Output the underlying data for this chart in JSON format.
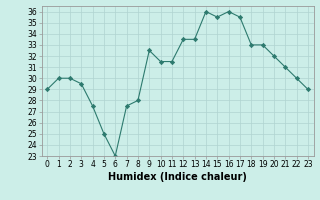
{
  "x": [
    0,
    1,
    2,
    3,
    4,
    5,
    6,
    7,
    8,
    9,
    10,
    11,
    12,
    13,
    14,
    15,
    16,
    17,
    18,
    19,
    20,
    21,
    22,
    23
  ],
  "y": [
    29,
    30,
    30,
    29.5,
    27.5,
    25,
    23,
    27.5,
    28,
    32.5,
    31.5,
    31.5,
    33.5,
    33.5,
    36,
    35.5,
    36,
    35.5,
    33,
    33,
    32,
    31,
    30,
    29
  ],
  "line_color": "#2d7a6e",
  "marker": "D",
  "marker_size": 2.2,
  "bg_color": "#cceee8",
  "grid_color": "#b0d4d0",
  "xlabel": "Humidex (Indice chaleur)",
  "xlim": [
    -0.5,
    23.5
  ],
  "ylim": [
    23,
    36.5
  ],
  "yticks": [
    23,
    24,
    25,
    26,
    27,
    28,
    29,
    30,
    31,
    32,
    33,
    34,
    35,
    36
  ],
  "xticks": [
    0,
    1,
    2,
    3,
    4,
    5,
    6,
    7,
    8,
    9,
    10,
    11,
    12,
    13,
    14,
    15,
    16,
    17,
    18,
    19,
    20,
    21,
    22,
    23
  ],
  "xlabel_fontsize": 7,
  "tick_fontsize": 5.5
}
